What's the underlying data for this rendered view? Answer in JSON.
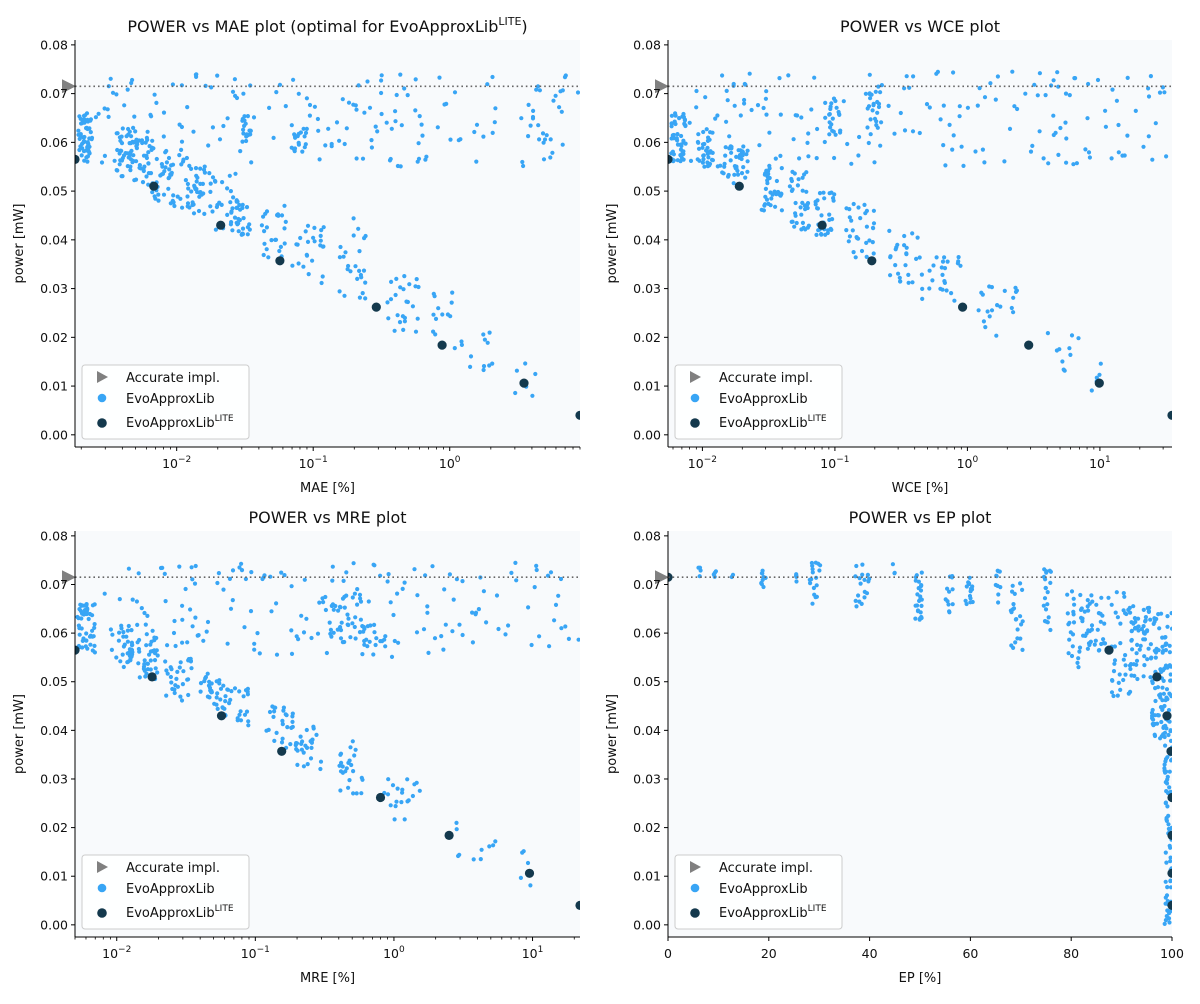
{
  "colors": {
    "evo": "#38a5f5",
    "lite": "#14394d",
    "accurate": "#808080",
    "plot_bg": "#f8fafc",
    "ref_line": "#666666"
  },
  "legend": {
    "accurate": "Accurate impl.",
    "evo": "EvoApproxLib",
    "lite_base": "EvoApproxLib",
    "lite_sup": "LITE"
  },
  "chart_data": [
    {
      "id": "mae",
      "type": "scatter",
      "title": "POWER vs MAE plot (optimal for EvoApproxLib",
      "title_sup": "LITE",
      "title_tail": ")",
      "xlabel": "MAE [%]",
      "ylabel": "power [mW]",
      "xscale": "log",
      "xlim": [
        0.0018,
        9.0
      ],
      "ylim": [
        -0.0025,
        0.081
      ],
      "xticks": [
        {
          "v": 0.01,
          "b": "10",
          "e": "−2"
        },
        {
          "v": 0.1,
          "b": "10",
          "e": "−1"
        },
        {
          "v": 1,
          "b": "10",
          "e": "0"
        }
      ],
      "yticks": [
        0.0,
        0.01,
        0.02,
        0.03,
        0.04,
        0.05,
        0.06,
        0.07,
        0.08
      ],
      "accurate_power": 0.0715,
      "lite_points": [
        [
          0.0018,
          0.0565
        ],
        [
          0.0068,
          0.051
        ],
        [
          0.021,
          0.043
        ],
        [
          0.057,
          0.0357
        ],
        [
          0.29,
          0.0262
        ],
        [
          0.88,
          0.0184
        ],
        [
          3.5,
          0.0106
        ],
        [
          9.0,
          0.004
        ]
      ],
      "evo_clusters": [
        {
          "x": [
            0.0019,
            0.0024
          ],
          "y": [
            0.056,
            0.066
          ],
          "n": 55
        },
        {
          "x": [
            0.0035,
            0.0052
          ],
          "y": [
            0.053,
            0.063
          ],
          "n": 40
        },
        {
          "x": [
            0.0045,
            0.0068
          ],
          "y": [
            0.051,
            0.061
          ],
          "n": 35
        },
        {
          "x": [
            0.0065,
            0.0095
          ],
          "y": [
            0.048,
            0.059
          ],
          "n": 30
        },
        {
          "x": [
            0.009,
            0.014
          ],
          "y": [
            0.046,
            0.057
          ],
          "n": 30
        },
        {
          "x": [
            0.013,
            0.019
          ],
          "y": [
            0.045,
            0.055
          ],
          "n": 25
        },
        {
          "x": [
            0.018,
            0.028
          ],
          "y": [
            0.042,
            0.054
          ],
          "n": 25
        },
        {
          "x": [
            0.025,
            0.035
          ],
          "y": [
            0.041,
            0.048
          ],
          "n": 25
        },
        {
          "x": [
            0.04,
            0.065
          ],
          "y": [
            0.035,
            0.047
          ],
          "n": 25
        },
        {
          "x": [
            0.07,
            0.12
          ],
          "y": [
            0.031,
            0.043
          ],
          "n": 25
        },
        {
          "x": [
            0.15,
            0.25
          ],
          "y": [
            0.027,
            0.045
          ],
          "n": 25
        },
        {
          "x": [
            0.35,
            0.6
          ],
          "y": [
            0.021,
            0.034
          ],
          "n": 25
        },
        {
          "x": [
            0.75,
            1.3
          ],
          "y": [
            0.017,
            0.03
          ],
          "n": 15
        },
        {
          "x": [
            1.4,
            2.2
          ],
          "y": [
            0.013,
            0.022
          ],
          "n": 10
        },
        {
          "x": [
            3.0,
            4.5
          ],
          "y": [
            0.008,
            0.017
          ],
          "n": 6
        },
        {
          "x": [
            0.03,
            0.035
          ],
          "y": [
            0.06,
            0.066
          ],
          "n": 18
        },
        {
          "x": [
            0.07,
            0.09
          ],
          "y": [
            0.058,
            0.063
          ],
          "n": 15
        },
        {
          "x": [
            0.0025,
            9.0
          ],
          "y": [
            0.055,
            0.0745
          ],
          "n": 180
        }
      ]
    },
    {
      "id": "wce",
      "type": "scatter",
      "title": "POWER vs WCE plot",
      "xlabel": "WCE [%]",
      "ylabel": "power [mW]",
      "xscale": "log",
      "xlim": [
        0.0055,
        35.0
      ],
      "ylim": [
        -0.0025,
        0.081
      ],
      "xticks": [
        {
          "v": 0.01,
          "b": "10",
          "e": "−2"
        },
        {
          "v": 0.1,
          "b": "10",
          "e": "−1"
        },
        {
          "v": 1,
          "b": "10",
          "e": "0"
        },
        {
          "v": 10,
          "b": "10",
          "e": "1"
        }
      ],
      "yticks": [
        0.0,
        0.01,
        0.02,
        0.03,
        0.04,
        0.05,
        0.06,
        0.07,
        0.08
      ],
      "accurate_power": 0.0715,
      "lite_points": [
        [
          0.0055,
          0.0565
        ],
        [
          0.019,
          0.051
        ],
        [
          0.08,
          0.043
        ],
        [
          0.19,
          0.0357
        ],
        [
          0.92,
          0.0262
        ],
        [
          2.9,
          0.0184
        ],
        [
          9.9,
          0.0106
        ],
        [
          35.0,
          0.004
        ]
      ],
      "evo_clusters": [
        {
          "x": [
            0.0058,
            0.0075
          ],
          "y": [
            0.056,
            0.066
          ],
          "n": 50
        },
        {
          "x": [
            0.009,
            0.012
          ],
          "y": [
            0.055,
            0.063
          ],
          "n": 35
        },
        {
          "x": [
            0.014,
            0.022
          ],
          "y": [
            0.051,
            0.06
          ],
          "n": 40
        },
        {
          "x": [
            0.028,
            0.04
          ],
          "y": [
            0.046,
            0.056
          ],
          "n": 35
        },
        {
          "x": [
            0.045,
            0.065
          ],
          "y": [
            0.042,
            0.054
          ],
          "n": 35
        },
        {
          "x": [
            0.07,
            0.1
          ],
          "y": [
            0.041,
            0.05
          ],
          "n": 30
        },
        {
          "x": [
            0.12,
            0.2
          ],
          "y": [
            0.036,
            0.048
          ],
          "n": 30
        },
        {
          "x": [
            0.25,
            0.45
          ],
          "y": [
            0.031,
            0.042
          ],
          "n": 25
        },
        {
          "x": [
            0.45,
            0.9
          ],
          "y": [
            0.027,
            0.037
          ],
          "n": 25
        },
        {
          "x": [
            1.2,
            2.5
          ],
          "y": [
            0.019,
            0.032
          ],
          "n": 20
        },
        {
          "x": [
            4.0,
            7.0
          ],
          "y": [
            0.013,
            0.022
          ],
          "n": 10
        },
        {
          "x": [
            8.5,
            10.5
          ],
          "y": [
            0.008,
            0.017
          ],
          "n": 5
        },
        {
          "x": [
            0.09,
            0.11
          ],
          "y": [
            0.06,
            0.069
          ],
          "n": 20
        },
        {
          "x": [
            0.18,
            0.22
          ],
          "y": [
            0.058,
            0.072
          ],
          "n": 20
        },
        {
          "x": [
            0.008,
            35.0
          ],
          "y": [
            0.055,
            0.0745
          ],
          "n": 170
        }
      ]
    },
    {
      "id": "mre",
      "type": "scatter",
      "title": "POWER vs MRE plot",
      "xlabel": "MRE [%]",
      "ylabel": "power [mW]",
      "xscale": "log",
      "xlim": [
        0.005,
        22.0
      ],
      "ylim": [
        -0.0025,
        0.081
      ],
      "xticks": [
        {
          "v": 0.01,
          "b": "10",
          "e": "−2"
        },
        {
          "v": 0.1,
          "b": "10",
          "e": "−1"
        },
        {
          "v": 1,
          "b": "10",
          "e": "0"
        },
        {
          "v": 10,
          "b": "10",
          "e": "1"
        }
      ],
      "yticks": [
        0.0,
        0.01,
        0.02,
        0.03,
        0.04,
        0.05,
        0.06,
        0.07,
        0.08
      ],
      "accurate_power": 0.0715,
      "lite_points": [
        [
          0.005,
          0.0565
        ],
        [
          0.018,
          0.051
        ],
        [
          0.057,
          0.043
        ],
        [
          0.155,
          0.0357
        ],
        [
          0.8,
          0.0262
        ],
        [
          2.5,
          0.0184
        ],
        [
          9.5,
          0.0106
        ],
        [
          22.0,
          0.004
        ]
      ],
      "evo_clusters": [
        {
          "x": [
            0.0052,
            0.007
          ],
          "y": [
            0.056,
            0.066
          ],
          "n": 50
        },
        {
          "x": [
            0.009,
            0.013
          ],
          "y": [
            0.053,
            0.062
          ],
          "n": 35
        },
        {
          "x": [
            0.014,
            0.02
          ],
          "y": [
            0.05,
            0.06
          ],
          "n": 35
        },
        {
          "x": [
            0.022,
            0.035
          ],
          "y": [
            0.046,
            0.055
          ],
          "n": 30
        },
        {
          "x": [
            0.04,
            0.06
          ],
          "y": [
            0.044,
            0.052
          ],
          "n": 30
        },
        {
          "x": [
            0.06,
            0.09
          ],
          "y": [
            0.041,
            0.049
          ],
          "n": 25
        },
        {
          "x": [
            0.12,
            0.2
          ],
          "y": [
            0.036,
            0.045
          ],
          "n": 30
        },
        {
          "x": [
            0.2,
            0.3
          ],
          "y": [
            0.032,
            0.041
          ],
          "n": 25
        },
        {
          "x": [
            0.4,
            0.6
          ],
          "y": [
            0.027,
            0.038
          ],
          "n": 25
        },
        {
          "x": [
            0.8,
            1.6
          ],
          "y": [
            0.021,
            0.03
          ],
          "n": 20
        },
        {
          "x": [
            2.5,
            5.5
          ],
          "y": [
            0.013,
            0.022
          ],
          "n": 10
        },
        {
          "x": [
            7.0,
            12.0
          ],
          "y": [
            0.008,
            0.017
          ],
          "n": 5
        },
        {
          "x": [
            0.3,
            0.6
          ],
          "y": [
            0.058,
            0.068
          ],
          "n": 40
        },
        {
          "x": [
            0.6,
            0.9
          ],
          "y": [
            0.057,
            0.062
          ],
          "n": 15
        },
        {
          "x": [
            0.008,
            22.0
          ],
          "y": [
            0.055,
            0.0745
          ],
          "n": 170
        }
      ]
    },
    {
      "id": "ep",
      "type": "scatter",
      "title": "POWER vs EP plot",
      "xlabel": "EP [%]",
      "ylabel": "power [mW]",
      "xscale": "linear",
      "xlim": [
        0,
        100
      ],
      "ylim": [
        -0.0025,
        0.081
      ],
      "xticks": [
        {
          "v": 0,
          "b": "0"
        },
        {
          "v": 20,
          "b": "20"
        },
        {
          "v": 40,
          "b": "40"
        },
        {
          "v": 60,
          "b": "60"
        },
        {
          "v": 80,
          "b": "80"
        },
        {
          "v": 100,
          "b": "100"
        }
      ],
      "yticks": [
        0.0,
        0.01,
        0.02,
        0.03,
        0.04,
        0.05,
        0.06,
        0.07,
        0.08
      ],
      "accurate_power": 0.0715,
      "lite_points": [
        [
          0.0,
          0.0715
        ],
        [
          87.5,
          0.0565
        ],
        [
          97.0,
          0.051
        ],
        [
          99.0,
          0.043
        ],
        [
          99.8,
          0.0357
        ],
        [
          100.0,
          0.0262
        ],
        [
          100.0,
          0.0184
        ],
        [
          100.0,
          0.0106
        ],
        [
          100.0,
          0.004
        ]
      ],
      "evo_clusters": [
        {
          "x": [
            6.0,
            6.5
          ],
          "y": [
            0.0715,
            0.0735
          ],
          "n": 4
        },
        {
          "x": [
            9.0,
            9.5
          ],
          "y": [
            0.0715,
            0.073
          ],
          "n": 4
        },
        {
          "x": [
            12.5,
            13.0
          ],
          "y": [
            0.0715,
            0.072
          ],
          "n": 2
        },
        {
          "x": [
            18.5,
            19.5
          ],
          "y": [
            0.069,
            0.0735
          ],
          "n": 10
        },
        {
          "x": [
            25.0,
            25.5
          ],
          "y": [
            0.0705,
            0.0725
          ],
          "n": 5
        },
        {
          "x": [
            28.0,
            30.5
          ],
          "y": [
            0.066,
            0.0745
          ],
          "n": 18
        },
        {
          "x": [
            37.0,
            40.0
          ],
          "y": [
            0.065,
            0.0745
          ],
          "n": 18
        },
        {
          "x": [
            44.5,
            45.0
          ],
          "y": [
            0.072,
            0.0745
          ],
          "n": 3
        },
        {
          "x": [
            49.0,
            50.5
          ],
          "y": [
            0.0625,
            0.0725
          ],
          "n": 25
        },
        {
          "x": [
            55.0,
            56.5
          ],
          "y": [
            0.064,
            0.0735
          ],
          "n": 12
        },
        {
          "x": [
            59.0,
            60.5
          ],
          "y": [
            0.064,
            0.0725
          ],
          "n": 15
        },
        {
          "x": [
            65.0,
            66.0
          ],
          "y": [
            0.064,
            0.073
          ],
          "n": 10
        },
        {
          "x": [
            68.0,
            70.5
          ],
          "y": [
            0.056,
            0.071
          ],
          "n": 22
        },
        {
          "x": [
            74.5,
            76.0
          ],
          "y": [
            0.06,
            0.0735
          ],
          "n": 20
        },
        {
          "x": [
            79.0,
            83.0
          ],
          "y": [
            0.053,
            0.0705
          ],
          "n": 30
        },
        {
          "x": [
            83.0,
            88.0
          ],
          "y": [
            0.055,
            0.0685
          ],
          "n": 35
        },
        {
          "x": [
            88.0,
            92.0
          ],
          "y": [
            0.047,
            0.0685
          ],
          "n": 40
        },
        {
          "x": [
            92.0,
            96.0
          ],
          "y": [
            0.05,
            0.066
          ],
          "n": 50
        },
        {
          "x": [
            96.0,
            98.5
          ],
          "y": [
            0.038,
            0.064
          ],
          "n": 60
        },
        {
          "x": [
            98.5,
            100.0
          ],
          "y": [
            0.0,
            0.065
          ],
          "n": 110
        }
      ]
    }
  ]
}
